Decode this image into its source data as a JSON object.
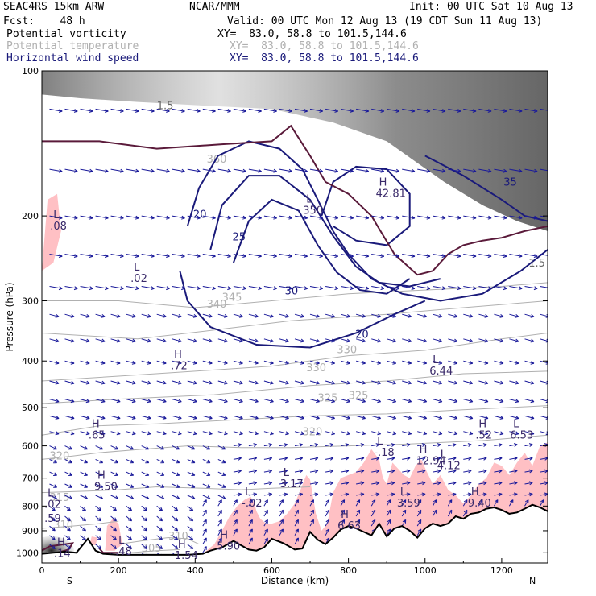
{
  "header": {
    "model": "SEAC4RS 15km ARW",
    "org": "NCAR/MMM",
    "init": "Init: 00 UTC Sat 10 Aug 13",
    "fcst": "Fcst:    48 h",
    "valid": "Valid: 00 UTC Mon 12 Aug 13 (19 CDT Sun 11 Aug 13)",
    "fields": [
      {
        "name": "Potential vorticity",
        "xy": "XY=  83.0, 58.8 to 101.5,144.6",
        "color": "#000000"
      },
      {
        "name": "Potential temperature",
        "xy": "XY=  83.0, 58.8 to 101.5,144.6",
        "color": "#b0b0b0"
      },
      {
        "name": "Horizontal wind speed",
        "xy": "XY=  83.0, 58.8 to 101.5,144.6",
        "color": "#1a1a7a"
      }
    ]
  },
  "chart_data": {
    "type": "cross-section",
    "xlabel": "Distance (km)",
    "ylabel": "Pressure (hPa)",
    "xlim": [
      0,
      1320
    ],
    "ylim": [
      1050,
      100
    ],
    "y_scale": "log-pressure",
    "x_ticks": [
      "0",
      "200",
      "400",
      "600",
      "800",
      "1000",
      "1200"
    ],
    "y_ticks": [
      "100",
      "200",
      "300",
      "400",
      "500",
      "600",
      "700",
      "800",
      "900",
      "1000"
    ],
    "x_end_labels": {
      "left": "S",
      "right": "N"
    },
    "colors": {
      "wind_contour": "#1a1a7a",
      "theta": "#b0b0b0",
      "pv_shade": "#ffc0c4",
      "pv_contour": "#5a1a3a",
      "terrain": "#000000",
      "vectors": "#1a1a9a"
    },
    "wind_speed_contours": [
      {
        "label": "20",
        "x": 395,
        "p": 202
      },
      {
        "label": "25",
        "x": 497,
        "p": 225
      },
      {
        "label": "30",
        "x": 634,
        "p": 291
      },
      {
        "label": "35",
        "x": 1205,
        "p": 173
      },
      {
        "label": "20",
        "x": 818,
        "p": 358
      }
    ],
    "theta_contour_labels": [
      "360",
      "345",
      "340",
      "330",
      "330",
      "325",
      "325",
      "320",
      "320",
      "315",
      "310",
      "310",
      "305"
    ],
    "pv_contour_labels": [
      "1.5",
      "1.5"
    ],
    "extrema": [
      {
        "type": "L",
        "value": ".08",
        "x": 30,
        "p": 210
      },
      {
        "type": "L",
        "value": ".02",
        "x": 240,
        "p": 270
      },
      {
        "type": "L",
        "value": "350",
        "x": 690,
        "p": 195
      },
      {
        "type": "H",
        "value": "42.81",
        "x": 880,
        "p": 180
      },
      {
        "type": "H",
        "value": ".72",
        "x": 345,
        "p": 410
      },
      {
        "type": "L",
        "value": "6.44",
        "x": 1020,
        "p": 420
      },
      {
        "type": "H",
        "value": ".65",
        "x": 130,
        "p": 570
      },
      {
        "type": "H",
        "value": ".52",
        "x": 1140,
        "p": 570
      },
      {
        "type": "L",
        "value": "6.53",
        "x": 1230,
        "p": 570
      },
      {
        "type": "L",
        "value": "-.18",
        "x": 875,
        "p": 620
      },
      {
        "type": "H",
        "value": "12.94",
        "x": 985,
        "p": 645
      },
      {
        "type": "L",
        "value": "4.12",
        "x": 1040,
        "p": 660
      },
      {
        "type": "L",
        "value": "3.17",
        "x": 630,
        "p": 720
      },
      {
        "type": "H",
        "value": "9.50",
        "x": 145,
        "p": 730
      },
      {
        "type": "L",
        "value": "-.02",
        "x": 530,
        "p": 790
      },
      {
        "type": "L",
        "value": "3.59",
        "x": 935,
        "p": 790
      },
      {
        "type": "H",
        "value": "9.40",
        "x": 1120,
        "p": 790
      },
      {
        "type": "L",
        "value": ".02",
        "x": 15,
        "p": 795
      },
      {
        "type": "",
        "value": ".59",
        "x": 15,
        "p": 850
      },
      {
        "type": "H",
        "value": "6.63",
        "x": 780,
        "p": 880
      },
      {
        "type": "H",
        "value": "5.90",
        "x": 465,
        "p": 970
      },
      {
        "type": "L",
        "value": ".48",
        "x": 200,
        "p": 995
      },
      {
        "type": "H",
        "value": "1.54",
        "x": 355,
        "p": 1015
      },
      {
        "type": "H",
        "value": ".14",
        "x": 40,
        "p": 1005
      }
    ],
    "terrain_profile": {
      "x": [
        0,
        30,
        60,
        90,
        120,
        140,
        160,
        200,
        260,
        320,
        380,
        420,
        440,
        470,
        500,
        520,
        540,
        560,
        580,
        600,
        630,
        660,
        680,
        700,
        720,
        740,
        760,
        780,
        800,
        820,
        840,
        860,
        880,
        900,
        920,
        940,
        960,
        980,
        1000,
        1020,
        1040,
        1060,
        1080,
        1100,
        1120,
        1140,
        1160,
        1180,
        1200,
        1220,
        1240,
        1260,
        1280,
        1300,
        1320
      ],
      "p": [
        1005,
        1000,
        995,
        1000,
        935,
        990,
        1005,
        1010,
        1010,
        1010,
        1010,
        1005,
        990,
        975,
        945,
        965,
        985,
        990,
        975,
        935,
        955,
        985,
        980,
        905,
        940,
        960,
        930,
        895,
        880,
        890,
        905,
        920,
        870,
        925,
        890,
        880,
        900,
        930,
        890,
        870,
        880,
        870,
        840,
        850,
        830,
        825,
        810,
        805,
        815,
        830,
        825,
        810,
        795,
        805,
        820
      ]
    }
  }
}
